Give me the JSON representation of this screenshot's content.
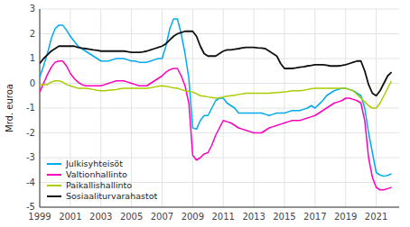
{
  "chart_data": {
    "type": "line",
    "ylabel": "Mrd. euroa",
    "x": [
      1999.0,
      1999.25,
      1999.5,
      1999.75,
      2000.0,
      2000.25,
      2000.5,
      2000.75,
      2001.0,
      2001.25,
      2001.5,
      2001.75,
      2002.0,
      2002.25,
      2002.5,
      2002.75,
      2003.0,
      2003.25,
      2003.5,
      2003.75,
      2004.0,
      2004.25,
      2004.5,
      2004.75,
      2005.0,
      2005.25,
      2005.5,
      2005.75,
      2006.0,
      2006.25,
      2006.5,
      2006.75,
      2007.0,
      2007.25,
      2007.5,
      2007.75,
      2008.0,
      2008.25,
      2008.5,
      2008.75,
      2009.0,
      2009.25,
      2009.5,
      2009.75,
      2010.0,
      2010.25,
      2010.5,
      2010.75,
      2011.0,
      2011.25,
      2011.5,
      2011.75,
      2012.0,
      2012.25,
      2012.5,
      2012.75,
      2013.0,
      2013.25,
      2013.5,
      2013.75,
      2014.0,
      2014.25,
      2014.5,
      2014.75,
      2015.0,
      2015.25,
      2015.5,
      2015.75,
      2016.0,
      2016.25,
      2016.5,
      2016.75,
      2017.0,
      2017.25,
      2017.5,
      2017.75,
      2018.0,
      2018.25,
      2018.5,
      2018.75,
      2019.0,
      2019.25,
      2019.5,
      2019.75,
      2020.0,
      2020.25,
      2020.5,
      2020.75,
      2021.0,
      2021.25,
      2021.5,
      2021.75,
      2022.0
    ],
    "series": [
      {
        "name": "Julkisyhteisöt",
        "color": "#00aaee",
        "values": [
          0.25,
          0.7,
          1.2,
          1.8,
          2.2,
          2.35,
          2.35,
          2.15,
          1.9,
          1.7,
          1.5,
          1.4,
          1.3,
          1.2,
          1.1,
          1.0,
          0.9,
          0.9,
          0.9,
          0.95,
          1.0,
          1.0,
          1.0,
          0.95,
          0.9,
          0.9,
          0.85,
          0.85,
          0.85,
          0.9,
          0.95,
          1.0,
          1.0,
          1.5,
          2.2,
          2.6,
          2.6,
          2.0,
          1.2,
          0.2,
          -1.8,
          -1.85,
          -1.5,
          -1.3,
          -1.3,
          -1.0,
          -0.7,
          -0.6,
          -0.6,
          -0.8,
          -0.9,
          -1.0,
          -1.2,
          -1.2,
          -1.2,
          -1.2,
          -1.2,
          -1.2,
          -1.2,
          -1.25,
          -1.3,
          -1.25,
          -1.2,
          -1.2,
          -1.2,
          -1.15,
          -1.1,
          -1.1,
          -1.1,
          -1.05,
          -1.0,
          -0.9,
          -1.0,
          -0.85,
          -0.7,
          -0.5,
          -0.4,
          -0.3,
          -0.25,
          -0.2,
          -0.2,
          -0.25,
          -0.3,
          -0.4,
          -0.5,
          -1.0,
          -2.0,
          -2.8,
          -3.6,
          -3.7,
          -3.75,
          -3.72,
          -3.65
        ]
      },
      {
        "name": "Valtionhallinto",
        "color": "#ff00bb",
        "values": [
          -0.35,
          0.0,
          0.35,
          0.65,
          0.85,
          0.9,
          0.9,
          0.7,
          0.4,
          0.2,
          0.05,
          -0.05,
          -0.1,
          -0.1,
          -0.1,
          -0.1,
          -0.1,
          -0.05,
          0.0,
          0.05,
          0.1,
          0.1,
          0.1,
          0.05,
          0.0,
          -0.05,
          -0.1,
          -0.1,
          -0.1,
          0.0,
          0.1,
          0.2,
          0.3,
          0.45,
          0.55,
          0.6,
          0.6,
          0.3,
          -0.1,
          -0.8,
          -2.9,
          -3.1,
          -3.0,
          -2.85,
          -2.8,
          -2.5,
          -2.1,
          -1.8,
          -1.5,
          -1.55,
          -1.6,
          -1.7,
          -1.8,
          -1.85,
          -1.9,
          -1.95,
          -2.0,
          -2.0,
          -2.0,
          -1.9,
          -1.8,
          -1.75,
          -1.7,
          -1.65,
          -1.6,
          -1.55,
          -1.5,
          -1.5,
          -1.5,
          -1.45,
          -1.4,
          -1.35,
          -1.3,
          -1.2,
          -1.1,
          -1.0,
          -0.9,
          -0.8,
          -0.75,
          -0.7,
          -0.6,
          -0.6,
          -0.65,
          -0.7,
          -0.8,
          -1.5,
          -3.0,
          -3.8,
          -4.2,
          -4.3,
          -4.3,
          -4.25,
          -4.2
        ]
      },
      {
        "name": "Paikallishallinto",
        "color": "#aacc00",
        "values": [
          -0.05,
          -0.05,
          -0.05,
          0.05,
          0.1,
          0.1,
          0.05,
          -0.05,
          -0.1,
          -0.15,
          -0.2,
          -0.2,
          -0.2,
          -0.22,
          -0.25,
          -0.28,
          -0.3,
          -0.3,
          -0.28,
          -0.26,
          -0.25,
          -0.22,
          -0.2,
          -0.2,
          -0.2,
          -0.2,
          -0.2,
          -0.2,
          -0.2,
          -0.18,
          -0.15,
          -0.12,
          -0.1,
          -0.12,
          -0.15,
          -0.18,
          -0.2,
          -0.25,
          -0.3,
          -0.33,
          -0.35,
          -0.42,
          -0.5,
          -0.52,
          -0.55,
          -0.57,
          -0.6,
          -0.58,
          -0.55,
          -0.52,
          -0.5,
          -0.48,
          -0.45,
          -0.43,
          -0.4,
          -0.4,
          -0.4,
          -0.4,
          -0.4,
          -0.4,
          -0.4,
          -0.38,
          -0.37,
          -0.36,
          -0.35,
          -0.33,
          -0.3,
          -0.3,
          -0.3,
          -0.28,
          -0.25,
          -0.22,
          -0.2,
          -0.2,
          -0.2,
          -0.2,
          -0.2,
          -0.2,
          -0.2,
          -0.2,
          -0.2,
          -0.25,
          -0.3,
          -0.45,
          -0.6,
          -0.75,
          -0.9,
          -1.0,
          -1.0,
          -0.8,
          -0.5,
          -0.2,
          0.1
        ]
      },
      {
        "name": "Sosiaaliturvarahastot",
        "color": "#111111",
        "values": [
          0.8,
          1.0,
          1.15,
          1.3,
          1.4,
          1.5,
          1.5,
          1.5,
          1.5,
          1.5,
          1.45,
          1.42,
          1.4,
          1.38,
          1.35,
          1.33,
          1.3,
          1.3,
          1.3,
          1.3,
          1.3,
          1.3,
          1.3,
          1.28,
          1.25,
          1.25,
          1.25,
          1.27,
          1.3,
          1.35,
          1.4,
          1.45,
          1.5,
          1.6,
          1.75,
          1.9,
          2.0,
          2.05,
          2.1,
          2.1,
          2.1,
          1.9,
          1.5,
          1.2,
          1.1,
          1.1,
          1.1,
          1.2,
          1.3,
          1.35,
          1.35,
          1.38,
          1.4,
          1.43,
          1.45,
          1.45,
          1.45,
          1.43,
          1.42,
          1.4,
          1.3,
          1.2,
          1.1,
          0.8,
          0.6,
          0.6,
          0.6,
          0.62,
          0.65,
          0.67,
          0.7,
          0.72,
          0.75,
          0.75,
          0.75,
          0.73,
          0.7,
          0.7,
          0.7,
          0.72,
          0.75,
          0.8,
          0.85,
          0.9,
          0.9,
          0.5,
          -0.05,
          -0.4,
          -0.5,
          -0.3,
          0.0,
          0.3,
          0.45
        ]
      }
    ],
    "xlim": [
      1999,
      2022.5
    ],
    "ylim": [
      -5,
      3
    ],
    "xticks": [
      1999,
      2001,
      2003,
      2005,
      2007,
      2009,
      2011,
      2013,
      2015,
      2017,
      2019,
      2021
    ],
    "yticks": [
      -5,
      -4,
      -3,
      -2,
      -1,
      0,
      1,
      2,
      3
    ],
    "grid": true,
    "legend": "lower left"
  }
}
